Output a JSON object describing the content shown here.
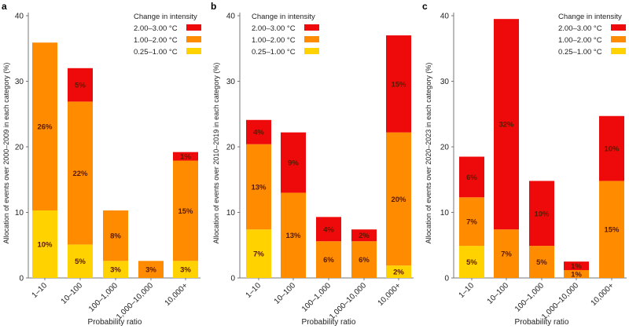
{
  "chart_data": [
    {
      "type": "bar",
      "stacked": true,
      "panel": "a",
      "title": "",
      "xlabel": "Probability ratio",
      "ylabel": "Allocation of events over 2000–2009 in each category (%)",
      "ylim": [
        0,
        40
      ],
      "yticks": [
        0,
        10,
        20,
        30,
        40
      ],
      "categories": [
        "1–10",
        "10–100",
        "100–1,000",
        "1,000–10,000",
        "10,000+"
      ],
      "legend": {
        "title": "Change in intensity",
        "position": "top-right"
      },
      "series": [
        {
          "name": "0.25–1.00 °C",
          "color": "#ffd200",
          "values": [
            10.3,
            5.1,
            2.6,
            0,
            2.6
          ],
          "labels": [
            "10%",
            "5%",
            "3%",
            "",
            "3%"
          ]
        },
        {
          "name": "1.00–2.00 °C",
          "color": "#ff8c00",
          "values": [
            25.6,
            21.8,
            7.7,
            2.6,
            15.3
          ],
          "labels": [
            "26%",
            "22%",
            "8%",
            "3%",
            "15%"
          ]
        },
        {
          "name": "2.00–3.00 °C",
          "color": "#ee0a0a",
          "values": [
            0,
            5.1,
            0,
            0,
            1.3
          ],
          "labels": [
            "",
            "5%",
            "",
            "",
            "1%"
          ]
        }
      ]
    },
    {
      "type": "bar",
      "stacked": true,
      "panel": "b",
      "title": "",
      "xlabel": "Probability ratio",
      "ylabel": "Allocation of events over 2010–2019 in each category (%)",
      "ylim": [
        0,
        40
      ],
      "yticks": [
        0,
        10,
        20,
        30,
        40
      ],
      "categories": [
        "1–10",
        "10–100",
        "100–1,000",
        "1,000–10,000",
        "10,000+"
      ],
      "legend": {
        "title": "Change in intensity",
        "position": "top-left"
      },
      "series": [
        {
          "name": "0.25–1.00 °C",
          "color": "#ffd200",
          "values": [
            7.4,
            0,
            0,
            0,
            1.9
          ],
          "labels": [
            "7%",
            "",
            "",
            "",
            "2%"
          ]
        },
        {
          "name": "1.00–2.00 °C",
          "color": "#ff8c00",
          "values": [
            13.0,
            13.0,
            5.6,
            5.6,
            20.3
          ],
          "labels": [
            "13%",
            "13%",
            "6%",
            "6%",
            "20%"
          ]
        },
        {
          "name": "2.00–3.00 °C",
          "color": "#ee0a0a",
          "values": [
            3.7,
            9.2,
            3.7,
            1.8,
            14.8
          ],
          "labels": [
            "4%",
            "9%",
            "4%",
            "2%",
            "15%"
          ]
        }
      ]
    },
    {
      "type": "bar",
      "stacked": true,
      "panel": "c",
      "title": "",
      "xlabel": "Probability ratio",
      "ylabel": "Allocation of events over 2020–2023 in each category (%)",
      "ylim": [
        0,
        40
      ],
      "yticks": [
        0,
        10,
        20,
        30,
        40
      ],
      "categories": [
        "1–10",
        "10–100",
        "100–1,000",
        "1,000–10,000",
        "10,000+"
      ],
      "legend": {
        "title": "Change in intensity",
        "position": "top-right"
      },
      "series": [
        {
          "name": "0.25–1.00 °C",
          "color": "#ffd200",
          "values": [
            4.9,
            0,
            0,
            0,
            0
          ],
          "labels": [
            "5%",
            "",
            "",
            "",
            ""
          ]
        },
        {
          "name": "1.00–2.00 °C",
          "color": "#ff8c00",
          "values": [
            7.4,
            7.4,
            4.9,
            1.2,
            14.8
          ],
          "labels": [
            "7%",
            "7%",
            "5%",
            "1%",
            "15%"
          ]
        },
        {
          "name": "2.00–3.00 °C",
          "color": "#ee0a0a",
          "values": [
            6.2,
            32.1,
            9.9,
            1.3,
            9.9
          ],
          "labels": [
            "6%",
            "32%",
            "10%",
            "1%",
            "10%"
          ]
        }
      ]
    }
  ]
}
